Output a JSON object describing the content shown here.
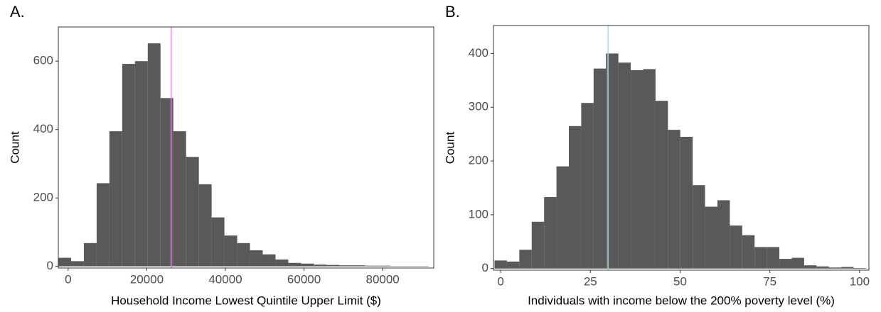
{
  "chart_data": [
    {
      "type": "histogram",
      "title": "A.",
      "xlabel": "Household Income Lowest Quintile Upper Limit ($)",
      "ylabel": "Count",
      "bins": [
        -2500,
        750,
        4000,
        7250,
        10500,
        13750,
        17000,
        20250,
        23500,
        26750,
        30000,
        33250,
        36500,
        39750,
        43000,
        46250,
        49500,
        52750,
        56000,
        59250,
        62500,
        65750,
        69000,
        72250,
        75500,
        78750,
        82000,
        85250,
        88500,
        91750
      ],
      "counts": [
        25,
        15,
        68,
        243,
        395,
        592,
        600,
        652,
        492,
        395,
        320,
        240,
        143,
        90,
        68,
        47,
        35,
        20,
        10,
        8,
        5,
        4,
        3,
        3,
        2,
        2,
        1,
        1,
        1
      ],
      "color": "#595959",
      "xlim": [
        -2500,
        93000
      ],
      "ylim": [
        -5,
        700
      ],
      "xticks": [
        0,
        20000,
        40000,
        60000,
        80000
      ],
      "yticks": [
        0,
        200,
        400,
        600
      ],
      "vline": {
        "value": 26200,
        "color": "#ee82ee"
      }
    },
    {
      "type": "histogram",
      "title": "B.",
      "xlabel": "Individuals with income below the 200% poverty level (%)",
      "ylabel": "Count",
      "bins": [
        -1.7,
        1.75,
        5.2,
        8.65,
        12.1,
        15.55,
        19,
        22.45,
        25.9,
        29.35,
        32.8,
        36.25,
        39.7,
        43.15,
        46.6,
        50.05,
        53.5,
        56.95,
        60.4,
        63.85,
        67.3,
        70.75,
        74.2,
        77.65,
        81.1,
        84.55,
        88,
        91.45,
        94.9,
        98.35,
        101.8
      ],
      "counts": [
        15,
        13,
        35,
        87,
        133,
        190,
        265,
        308,
        372,
        400,
        383,
        369,
        371,
        312,
        258,
        245,
        155,
        115,
        127,
        80,
        62,
        40,
        40,
        18,
        20,
        6,
        4,
        2,
        3,
        1
      ],
      "color": "#595959",
      "xlim": [
        -2,
        102.6
      ],
      "ylim": [
        -3,
        452
      ],
      "xticks": [
        0,
        25,
        50,
        75,
        100
      ],
      "yticks": [
        0,
        100,
        200,
        300,
        400
      ],
      "vline": {
        "value": 29.9,
        "color": "#add8e6"
      }
    }
  ]
}
